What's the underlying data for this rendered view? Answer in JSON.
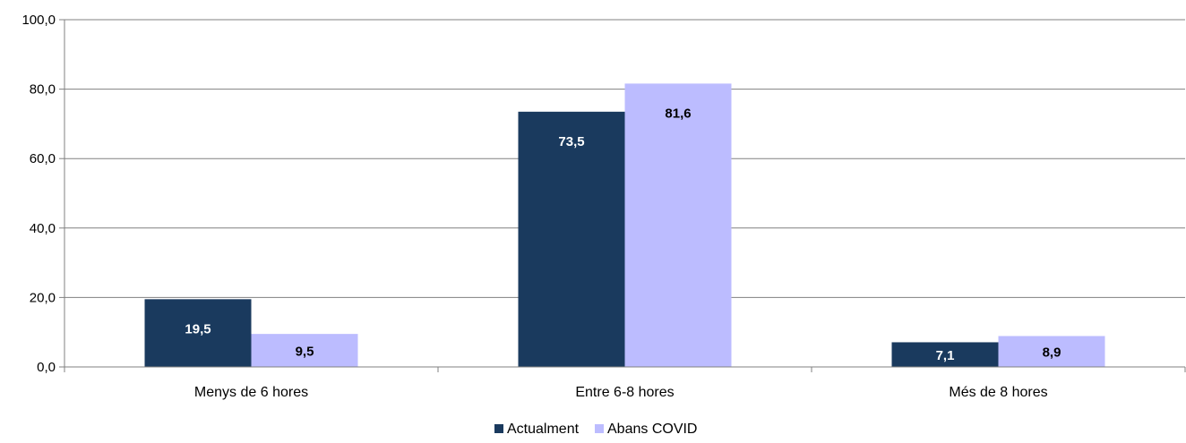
{
  "chart_data": {
    "type": "bar",
    "categories": [
      "Menys de 6 hores",
      "Entre 6-8 hores",
      "Més de 8 hores"
    ],
    "series": [
      {
        "name": "Actualment",
        "values": [
          19.5,
          73.5,
          7.1
        ],
        "labels": [
          "19,5",
          "73,5",
          "7,1"
        ],
        "color": "#1a3a5e",
        "label_color": "#ffffff"
      },
      {
        "name": "Abans COVID",
        "values": [
          9.5,
          81.6,
          8.9
        ],
        "labels": [
          "9,5",
          "81,6",
          "8,9"
        ],
        "color": "#bcbcff",
        "label_color": "#000000"
      }
    ],
    "ylim": [
      0,
      100
    ],
    "yticks": [
      0,
      20,
      40,
      60,
      80,
      100
    ],
    "ytick_labels": [
      "0,0",
      "20,0",
      "40,0",
      "60,0",
      "80,0",
      "100,0"
    ],
    "grid": true,
    "legend_position": "bottom"
  }
}
